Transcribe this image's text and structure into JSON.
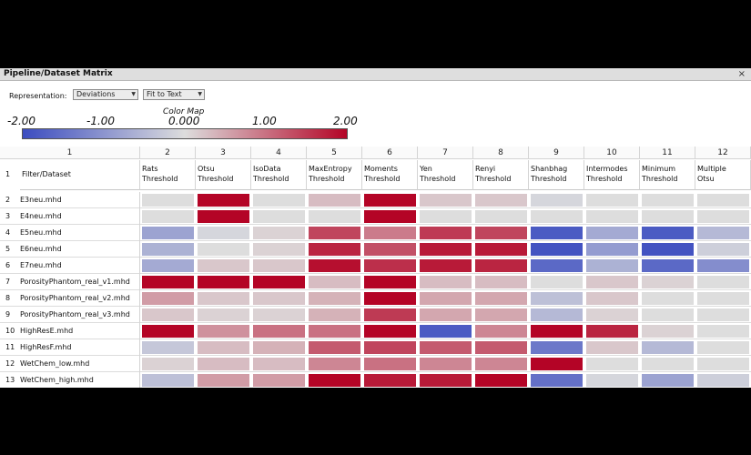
{
  "window": {
    "title": "Pipeline/Dataset Matrix",
    "close_glyph": "×"
  },
  "toolbar": {
    "representation_label": "Representation:",
    "representation_value": "Deviations",
    "fit_value": "Fit to Text"
  },
  "color_map": {
    "title": "Color Map",
    "ticks": [
      "-2.00",
      "-1.00",
      "0.000",
      "1.00",
      "2.00"
    ],
    "colors": {
      "low": "#3b4cc0",
      "mid": "#dddddd",
      "high": "#b40426"
    }
  },
  "matrix": {
    "col_numbers": [
      "1",
      "2",
      "3",
      "4",
      "5",
      "6",
      "7",
      "8",
      "9",
      "10",
      "11",
      "12"
    ],
    "row_header_label": "Filter/Dataset",
    "columns": [
      [
        "Rats",
        "Threshold"
      ],
      [
        "Otsu",
        "Threshold"
      ],
      [
        "IsoData",
        "Threshold"
      ],
      [
        "MaxEntropy",
        "Threshold"
      ],
      [
        "Moments",
        "Threshold"
      ],
      [
        "Yen",
        "Threshold"
      ],
      [
        "Renyi",
        "Threshold"
      ],
      [
        "Shanbhag",
        "Threshold"
      ],
      [
        "Intermodes",
        "Threshold"
      ],
      [
        "Minimum",
        "Threshold"
      ],
      [
        "Multiple",
        "Otsu"
      ]
    ],
    "rows": [
      {
        "num": "2",
        "label": "E3neu.mhd",
        "values": [
          0.0,
          2.0,
          0.0,
          0.3,
          2.0,
          0.2,
          0.2,
          -0.1,
          0.0,
          0.0,
          0.0
        ]
      },
      {
        "num": "3",
        "label": "E4neu.mhd",
        "values": [
          0.0,
          2.0,
          0.0,
          0.0,
          2.0,
          0.0,
          0.0,
          0.0,
          0.0,
          0.0,
          0.0
        ]
      },
      {
        "num": "4",
        "label": "E5neu.mhd",
        "values": [
          -0.8,
          -0.1,
          0.1,
          1.4,
          0.9,
          1.5,
          1.4,
          -1.8,
          -0.7,
          -1.8,
          -0.5
        ]
      },
      {
        "num": "5",
        "label": "E6neu.mhd",
        "values": [
          -0.6,
          0.0,
          0.1,
          1.7,
          1.3,
          1.8,
          1.8,
          -1.9,
          -0.9,
          -1.9,
          -0.2
        ]
      },
      {
        "num": "6",
        "label": "E7neu.mhd",
        "values": [
          -0.7,
          0.2,
          0.2,
          1.9,
          1.6,
          1.8,
          1.7,
          -1.6,
          -0.6,
          -1.6,
          -1.1
        ]
      },
      {
        "num": "7",
        "label": "PorosityPhantom_real_v1.mhd",
        "values": [
          2.0,
          2.0,
          2.0,
          0.3,
          2.0,
          0.3,
          0.3,
          0.0,
          0.2,
          0.1,
          0.0
        ]
      },
      {
        "num": "8",
        "label": "PorosityPhantom_real_v2.mhd",
        "values": [
          0.6,
          0.2,
          0.2,
          0.4,
          2.0,
          0.5,
          0.5,
          -0.4,
          0.2,
          0.0,
          0.0
        ]
      },
      {
        "num": "9",
        "label": "PorosityPhantom_real_v3.mhd",
        "values": [
          0.2,
          0.1,
          0.1,
          0.4,
          1.5,
          0.5,
          0.5,
          -0.5,
          0.1,
          0.0,
          0.0
        ]
      },
      {
        "num": "10",
        "label": "HighResE.mhd",
        "values": [
          2.0,
          0.7,
          1.0,
          1.0,
          2.0,
          -1.8,
          0.8,
          2.0,
          1.7,
          0.1,
          0.0
        ]
      },
      {
        "num": "11",
        "label": "HighResF.mhd",
        "values": [
          -0.3,
          0.3,
          0.4,
          1.2,
          1.4,
          1.2,
          1.2,
          -1.4,
          0.2,
          -0.5,
          0.0
        ]
      },
      {
        "num": "12",
        "label": "WetChem_low.mhd",
        "values": [
          0.1,
          0.3,
          0.3,
          0.8,
          1.0,
          0.8,
          0.8,
          2.0,
          0.0,
          0.0,
          0.0
        ]
      },
      {
        "num": "13",
        "label": "WetChem_high.mhd",
        "values": [
          -0.4,
          0.6,
          0.6,
          2.0,
          1.8,
          1.8,
          2.0,
          -1.5,
          -0.1,
          -0.8,
          -0.2
        ]
      }
    ]
  }
}
